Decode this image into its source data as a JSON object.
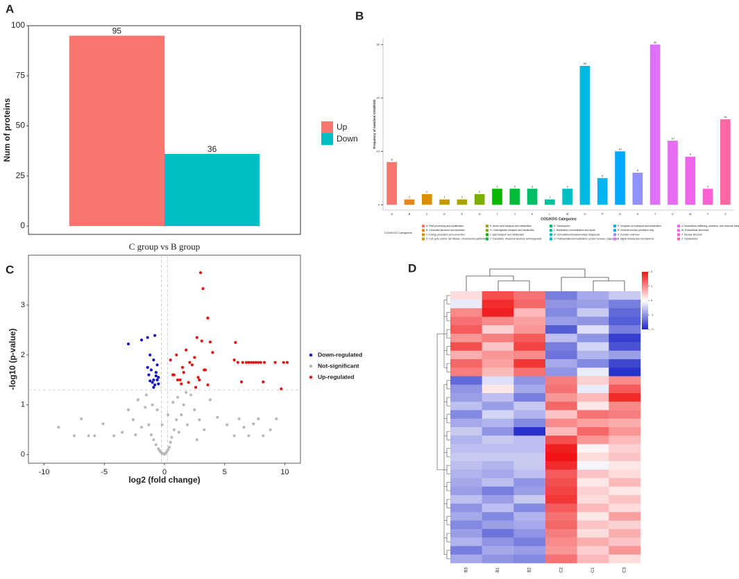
{
  "chart_data": [
    {
      "panel": "A",
      "type": "bar",
      "ylabel": "Num of proteins",
      "categories": [
        "C group vs B group"
      ],
      "series": [
        {
          "name": "Up",
          "color": "#f8766d",
          "values": [
            95
          ]
        },
        {
          "name": "Down",
          "color": "#00bfc4",
          "values": [
            36
          ]
        }
      ],
      "ylim": [
        -4.15,
        100
      ],
      "yticks": [
        0,
        25,
        50,
        75,
        100
      ]
    },
    {
      "panel": "B",
      "type": "bar",
      "xlabel": "COG/KOG Categories",
      "ylabel": "Frequency of matched COG/KOG",
      "categories": [
        "A",
        "B",
        "C",
        "D",
        "E",
        "G",
        "I",
        "J",
        "K",
        "L",
        "M",
        "O",
        "P",
        "R",
        "S",
        "T",
        "U",
        "W",
        "Y",
        "Z"
      ],
      "values": [
        8,
        1,
        2,
        1,
        1,
        2,
        3,
        3,
        3,
        1,
        3,
        26,
        5,
        10,
        6,
        30,
        12,
        9,
        3,
        16
      ],
      "colors": [
        "#f8766d",
        "#e7861b",
        "#d89000",
        "#c49a00",
        "#aba300",
        "#7cae00",
        "#0cb702",
        "#00ba38",
        "#00be67",
        "#00c19a",
        "#00bfc4",
        "#00b9e3",
        "#00b4f0",
        "#00a9ff",
        "#8f91ff",
        "#dd71fa",
        "#e76bf3",
        "#f066ea",
        "#fd61d1",
        "#ff67a4"
      ],
      "legend_title": "COG/KOG Categories",
      "legend_labels": [
        "A: RNA processing and modification",
        "B: Chromatin structure and dynamics",
        "C: Energy production and conversion",
        "D: Cell cycle control, cell division, chromosome partitioning",
        "E: Amino acid transport and metabolism",
        "G: Carbohydrate transport and metabolism",
        "I: Lipid transport and metabolism",
        "J: Translation, ribosomal structure and biogenesis",
        "K: Transcription",
        "L: Replication, recombination and repair",
        "M: Cell wall/membrane/envelope biogenesis",
        "O: Posttranslational modification, protein turnover, chaperones",
        "P: Inorganic ion transport and metabolism",
        "R: General function prediction only",
        "S: Function unknown",
        "T: Signal transduction mechanisms",
        "U: Intracellular trafficking, secretion, and vesicular transport",
        "W: Extracellular structures",
        "Y: Nuclear structure",
        "Z: Cytoskeleton"
      ],
      "ylim": [
        -1,
        31.2
      ],
      "yticks": [
        0,
        10,
        20,
        30
      ]
    },
    {
      "panel": "C",
      "type": "scatter",
      "xlabel": "log2 (fold change)",
      "ylabel": "-log10 (p-value)",
      "xlim": [
        -11.3,
        11.3
      ],
      "ylim": [
        -0.17,
        4.0
      ],
      "xticks": [
        -10,
        -5,
        0,
        5,
        10
      ],
      "yticks": [
        0,
        1,
        2,
        3
      ],
      "thresholds_x": [
        -0.263,
        0.263
      ],
      "threshold_y": 1.301,
      "series": [
        {
          "name": "Down-regulated",
          "color": "#1414c8",
          "x": [
            -3.0,
            -1.9,
            -1.4,
            -0.8,
            -1.2,
            -0.9,
            -0.6,
            -1.1,
            -0.7,
            -1.3,
            -0.5,
            -0.9,
            -1.0,
            -0.6,
            -0.8,
            -1.2,
            -0.5,
            -0.7,
            -1.4,
            -0.9
          ],
          "y": [
            2.22,
            2.3,
            2.35,
            2.39,
            2.0,
            1.9,
            1.8,
            1.7,
            1.65,
            1.6,
            1.55,
            1.5,
            1.45,
            1.5,
            1.4,
            1.48,
            1.42,
            1.58,
            1.75,
            1.35
          ]
        },
        {
          "name": "Not-significant",
          "color": "#b8b8b8",
          "x": [
            -8.8,
            -7.5,
            -6.9,
            -6.3,
            -5.8,
            -5.1,
            -4.2,
            -3.5,
            -3.0,
            -2.6,
            -2.2,
            -1.9,
            -1.6,
            -1.3,
            -1.1,
            -0.9,
            -0.7,
            -0.5,
            -0.4,
            -0.3,
            -0.2,
            -0.1,
            0.0,
            0.1,
            0.2,
            0.3,
            0.4,
            0.5,
            0.6,
            0.8,
            1.0,
            1.2,
            1.4,
            1.6,
            1.9,
            2.2,
            2.5,
            2.9,
            3.3,
            3.8,
            4.4,
            5.2,
            5.8,
            6.2,
            6.6,
            7.0,
            7.4,
            7.8,
            8.2,
            8.8,
            9.3,
            -0.6,
            0.7,
            -1.5,
            1.8,
            -2.4,
            2.7,
            -0.2,
            0.3,
            1.1,
            -1.0
          ],
          "y": [
            0.55,
            0.38,
            0.72,
            0.38,
            0.38,
            0.62,
            0.38,
            0.45,
            0.9,
            0.7,
            1.1,
            0.55,
            0.95,
            0.6,
            0.4,
            0.3,
            0.2,
            0.12,
            0.08,
            0.05,
            0.03,
            0.02,
            0.01,
            0.03,
            0.06,
            0.1,
            0.15,
            0.25,
            0.35,
            0.5,
            0.7,
            0.45,
            0.8,
            1.0,
            0.6,
            1.2,
            0.9,
            0.7,
            0.5,
            1.1,
            0.75,
            0.6,
            0.38,
            0.72,
            0.55,
            0.38,
            0.62,
            0.72,
            0.38,
            0.5,
            0.72,
            0.9,
            1.05,
            1.2,
            1.25,
            0.4,
            0.3,
            0.6,
            0.8,
            1.15,
            1.0
          ]
        },
        {
          "name": "Up-regulated",
          "color": "#e81010",
          "x": [
            3.0,
            3.2,
            3.6,
            2.7,
            3.1,
            3.8,
            5.9,
            5.8,
            6.4,
            8.2,
            9.7,
            6.1,
            6.5,
            6.8,
            7.0,
            7.2,
            7.4,
            7.6,
            7.8,
            8.0,
            8.3,
            9.2,
            9.9,
            10.2,
            0.5,
            0.8,
            1.0,
            1.3,
            1.5,
            1.8,
            2.0,
            2.3,
            2.5,
            2.8,
            3.3,
            3.6,
            4.0,
            1.1,
            1.6,
            2.1,
            2.6,
            0.7,
            1.4,
            2.9,
            3.4
          ],
          "y": [
            3.65,
            3.33,
            2.74,
            2.35,
            2.28,
            2.26,
            2.25,
            1.9,
            1.46,
            1.46,
            1.32,
            1.85,
            1.85,
            1.85,
            1.85,
            1.85,
            1.85,
            1.85,
            1.85,
            1.85,
            1.85,
            1.85,
            1.85,
            1.85,
            1.9,
            1.6,
            2.0,
            1.5,
            1.75,
            2.1,
            1.45,
            1.8,
            1.95,
            1.55,
            1.7,
            1.4,
            2.05,
            1.5,
            1.65,
            1.85,
            1.35,
            1.6,
            1.42,
            1.5,
            1.7
          ]
        }
      ]
    },
    {
      "panel": "D",
      "type": "heatmap",
      "columns": [
        "B3",
        "B1",
        "B2",
        "C2",
        "C1",
        "C3"
      ],
      "zlim": [
        -2,
        2
      ],
      "zticks": [
        -2,
        -1,
        0,
        1,
        2
      ],
      "values": [
        [
          0.3,
          1.5,
          1.2,
          -1.2,
          -0.8,
          -0.5
        ],
        [
          -0.2,
          1.8,
          1.3,
          -1.0,
          -0.9,
          -1.2
        ],
        [
          1.0,
          1.9,
          0.6,
          -1.1,
          -0.5,
          -1.4
        ],
        [
          1.2,
          1.0,
          0.8,
          -0.9,
          -1.0,
          -1.5
        ],
        [
          1.4,
          0.4,
          0.9,
          -1.5,
          -0.3,
          -1.2
        ],
        [
          0.9,
          1.1,
          1.4,
          -0.6,
          -1.0,
          -1.8
        ],
        [
          1.5,
          0.5,
          1.6,
          -1.2,
          -0.4,
          -1.6
        ],
        [
          0.7,
          0.9,
          1.0,
          -1.3,
          -0.7,
          -0.9
        ],
        [
          1.3,
          0.8,
          1.7,
          -0.8,
          -1.1,
          -1.7
        ],
        [
          1.1,
          0.6,
          1.2,
          -1.0,
          -0.2,
          -1.9
        ],
        [
          -1.4,
          -0.3,
          -1.0,
          1.1,
          0.4,
          1.0
        ],
        [
          -1.0,
          0.2,
          -0.8,
          1.2,
          -0.2,
          1.4
        ],
        [
          -0.9,
          -0.6,
          -1.2,
          0.9,
          0.6,
          1.8
        ],
        [
          -0.6,
          -0.9,
          -0.5,
          1.3,
          0.2,
          1.0
        ],
        [
          -1.1,
          -0.4,
          -0.7,
          0.5,
          1.2,
          1.1
        ],
        [
          -0.8,
          -0.7,
          -1.1,
          1.0,
          0.8,
          0.7
        ],
        [
          -0.5,
          -1.0,
          -1.9,
          0.6,
          1.3,
          0.9
        ],
        [
          -0.7,
          -0.5,
          -0.6,
          1.5,
          0.9,
          0.6
        ],
        [
          -0.6,
          -0.6,
          -0.6,
          1.9,
          0.1,
          0.4
        ],
        [
          -0.5,
          -0.5,
          -0.5,
          2.0,
          0.3,
          0.5
        ],
        [
          -0.6,
          -0.7,
          -0.5,
          1.8,
          -0.1,
          0.2
        ],
        [
          -0.7,
          -0.8,
          -0.6,
          1.4,
          0.5,
          0.3
        ],
        [
          -0.8,
          -0.6,
          -1.0,
          1.5,
          0.2,
          0.6
        ],
        [
          -0.9,
          -1.2,
          -0.9,
          1.6,
          0.4,
          0.2
        ],
        [
          -0.6,
          -0.9,
          -0.5,
          1.7,
          0.3,
          0.5
        ],
        [
          -1.0,
          -0.6,
          -1.1,
          1.4,
          0.6,
          0.3
        ],
        [
          -0.8,
          -1.1,
          -0.7,
          1.2,
          0.2,
          0.8
        ],
        [
          -1.1,
          -0.9,
          -0.8,
          1.3,
          0.5,
          0.4
        ],
        [
          -0.9,
          -1.3,
          -1.0,
          1.1,
          0.3,
          0.7
        ],
        [
          -0.7,
          -1.0,
          -1.2,
          1.0,
          0.7,
          0.5
        ],
        [
          -1.2,
          -0.8,
          -0.9,
          0.9,
          0.4,
          0.9
        ],
        [
          -0.8,
          -1.0,
          -1.1,
          1.2,
          0.6,
          0.3
        ]
      ]
    }
  ]
}
